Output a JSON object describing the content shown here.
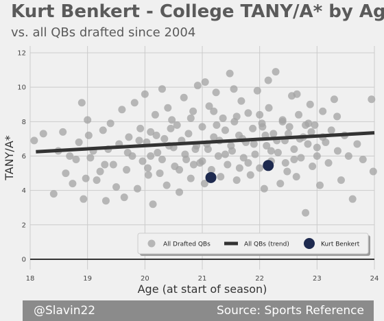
{
  "title": "Kurt Benkert - College TANY/A* by Age",
  "subtitle": "vs. all QBs drafted since 2004",
  "footer": {
    "left": "@Slavin22",
    "right": "Source: Sports Reference"
  },
  "colors": {
    "background": "#f0f0f0",
    "points": "#a3a3a3",
    "trend": "#333333",
    "highlight": "#1e2a4f",
    "grid": "#cbcbcb",
    "footer_bg": "#8b8b8b"
  },
  "chart_data": {
    "type": "scatter",
    "title": "Kurt Benkert - College TANY/A* by Age",
    "subtitle": "vs. all QBs drafted since 2004",
    "xlabel": "Age (at start of season)",
    "ylabel": "TANY/A*",
    "xlim": [
      18,
      24
    ],
    "ylim": [
      -0.6,
      12.4
    ],
    "x_ticks": [
      "18",
      "19",
      "20",
      "21",
      "22",
      "23",
      "24"
    ],
    "y_ticks": [
      "0",
      "2",
      "4",
      "6",
      "8",
      "10",
      "12"
    ],
    "grid": true,
    "legend_position": "bottom-right",
    "legend": [
      "All Drafted QBs",
      "All QBs (trend)",
      "Kurt Benkert"
    ],
    "series": [
      {
        "name": "All Drafted QBs",
        "type": "scatter",
        "points": [
          [
            18.07,
            6.9
          ],
          [
            18.23,
            7.3
          ],
          [
            18.41,
            3.8
          ],
          [
            18.49,
            6.3
          ],
          [
            18.57,
            7.4
          ],
          [
            18.62,
            5.0
          ],
          [
            18.69,
            6.0
          ],
          [
            18.74,
            4.4
          ],
          [
            18.8,
            5.8
          ],
          [
            18.85,
            6.8
          ],
          [
            18.9,
            9.1
          ],
          [
            18.93,
            3.5
          ],
          [
            18.97,
            4.7
          ],
          [
            19.0,
            8.1
          ],
          [
            19.02,
            7.2
          ],
          [
            19.05,
            5.9
          ],
          [
            19.1,
            6.3
          ],
          [
            19.16,
            4.6
          ],
          [
            19.22,
            5.1
          ],
          [
            19.27,
            7.5
          ],
          [
            19.32,
            3.4
          ],
          [
            19.36,
            6.4
          ],
          [
            19.4,
            7.9
          ],
          [
            19.45,
            5.5
          ],
          [
            19.5,
            4.2
          ],
          [
            19.55,
            6.7
          ],
          [
            19.6,
            8.7
          ],
          [
            19.64,
            3.6
          ],
          [
            19.68,
            5.2
          ],
          [
            19.72,
            7.1
          ],
          [
            19.78,
            6.0
          ],
          [
            19.82,
            9.1
          ],
          [
            19.87,
            4.1
          ],
          [
            19.92,
            7.6
          ],
          [
            19.96,
            5.7
          ],
          [
            20.0,
            9.6
          ],
          [
            20.03,
            6.8
          ],
          [
            20.06,
            4.9
          ],
          [
            20.1,
            7.4
          ],
          [
            20.14,
            3.2
          ],
          [
            20.18,
            8.4
          ],
          [
            20.22,
            6.2
          ],
          [
            20.26,
            5.0
          ],
          [
            20.3,
            9.9
          ],
          [
            20.34,
            7.0
          ],
          [
            20.38,
            4.3
          ],
          [
            20.42,
            6.6
          ],
          [
            20.47,
            8.1
          ],
          [
            20.52,
            5.4
          ],
          [
            20.56,
            7.8
          ],
          [
            20.6,
            3.9
          ],
          [
            20.64,
            6.9
          ],
          [
            20.68,
            9.4
          ],
          [
            20.72,
            5.8
          ],
          [
            20.76,
            7.3
          ],
          [
            20.8,
            4.7
          ],
          [
            20.84,
            8.6
          ],
          [
            20.88,
            6.4
          ],
          [
            20.92,
            10.1
          ],
          [
            20.96,
            5.6
          ],
          [
            21.0,
            7.7
          ],
          [
            21.04,
            4.4
          ],
          [
            21.08,
            6.7
          ],
          [
            21.12,
            8.9
          ],
          [
            21.16,
            5.2
          ],
          [
            21.2,
            7.1
          ],
          [
            21.24,
            9.7
          ],
          [
            21.28,
            6.0
          ],
          [
            21.32,
            4.8
          ],
          [
            21.36,
            8.2
          ],
          [
            21.4,
            7.5
          ],
          [
            21.44,
            5.5
          ],
          [
            21.48,
            10.8
          ],
          [
            21.52,
            6.3
          ],
          [
            21.56,
            8.0
          ],
          [
            21.6,
            4.6
          ],
          [
            21.64,
            7.2
          ],
          [
            21.68,
            9.2
          ],
          [
            21.72,
            5.9
          ],
          [
            21.76,
            6.8
          ],
          [
            21.8,
            8.5
          ],
          [
            21.84,
            4.9
          ],
          [
            21.88,
            7.6
          ],
          [
            21.92,
            6.1
          ],
          [
            21.96,
            9.8
          ],
          [
            22.0,
            5.3
          ],
          [
            22.04,
            7.9
          ],
          [
            22.08,
            4.1
          ],
          [
            22.12,
            6.6
          ],
          [
            22.16,
            8.8
          ],
          [
            22.2,
            5.7
          ],
          [
            22.24,
            7.3
          ],
          [
            22.28,
            10.9
          ],
          [
            22.32,
            6.2
          ],
          [
            22.36,
            4.4
          ],
          [
            22.4,
            8.1
          ],
          [
            22.44,
            6.9
          ],
          [
            22.48,
            5.1
          ],
          [
            22.52,
            7.7
          ],
          [
            22.56,
            9.5
          ],
          [
            22.6,
            6.4
          ],
          [
            22.64,
            4.8
          ],
          [
            22.68,
            8.4
          ],
          [
            22.72,
            5.9
          ],
          [
            22.76,
            7.1
          ],
          [
            22.8,
            2.7
          ],
          [
            22.84,
            6.7
          ],
          [
            22.88,
            9.0
          ],
          [
            22.92,
            5.4
          ],
          [
            22.96,
            7.8
          ],
          [
            23.0,
            6.0
          ],
          [
            23.05,
            4.3
          ],
          [
            23.1,
            8.6
          ],
          [
            23.15,
            6.8
          ],
          [
            23.2,
            5.6
          ],
          [
            23.25,
            7.5
          ],
          [
            23.3,
            9.3
          ],
          [
            23.36,
            6.3
          ],
          [
            23.42,
            4.6
          ],
          [
            23.48,
            7.2
          ],
          [
            23.55,
            6.0
          ],
          [
            23.62,
            3.5
          ],
          [
            23.7,
            6.7
          ],
          [
            23.8,
            5.8
          ],
          [
            23.95,
            9.3
          ],
          [
            23.98,
            5.1
          ],
          [
            19.3,
            5.5
          ],
          [
            19.7,
            6.2
          ],
          [
            20.1,
            6.0
          ],
          [
            20.3,
            5.8
          ],
          [
            20.5,
            6.5
          ],
          [
            20.7,
            6.1
          ],
          [
            20.9,
            6.6
          ],
          [
            21.1,
            6.4
          ],
          [
            21.3,
            6.9
          ],
          [
            21.5,
            6.6
          ],
          [
            21.7,
            7.0
          ],
          [
            21.9,
            6.7
          ],
          [
            22.1,
            7.2
          ],
          [
            22.3,
            6.9
          ],
          [
            22.5,
            7.3
          ],
          [
            22.7,
            7.0
          ],
          [
            22.9,
            7.4
          ],
          [
            23.1,
            7.1
          ],
          [
            20.2,
            7.2
          ],
          [
            20.6,
            5.2
          ],
          [
            21.0,
            5.7
          ],
          [
            21.4,
            6.1
          ],
          [
            21.8,
            5.6
          ],
          [
            22.2,
            6.3
          ],
          [
            22.6,
            5.8
          ],
          [
            23.0,
            6.5
          ],
          [
            20.4,
            8.8
          ],
          [
            20.8,
            8.2
          ],
          [
            21.2,
            8.6
          ],
          [
            21.6,
            8.3
          ],
          [
            22.0,
            8.4
          ],
          [
            22.4,
            8.0
          ],
          [
            22.8,
            7.8
          ],
          [
            19.9,
            6.9
          ],
          [
            20.05,
            5.3
          ],
          [
            20.45,
            7.6
          ],
          [
            20.85,
            5.5
          ],
          [
            21.25,
            7.8
          ],
          [
            21.65,
            5.3
          ],
          [
            22.05,
            7.7
          ],
          [
            22.45,
            5.6
          ],
          [
            22.85,
            7.9
          ],
          [
            21.05,
            10.3
          ],
          [
            21.55,
            9.9
          ],
          [
            22.15,
            10.4
          ],
          [
            22.65,
            9.6
          ],
          [
            23.35,
            8.3
          ]
        ]
      },
      {
        "name": "All QBs (trend)",
        "type": "line",
        "x": [
          18.1,
          24.0
        ],
        "y": [
          6.25,
          7.35
        ]
      },
      {
        "name": "Kurt Benkert",
        "type": "scatter",
        "points": [
          [
            21.15,
            4.75
          ],
          [
            22.15,
            5.45
          ]
        ]
      }
    ]
  }
}
